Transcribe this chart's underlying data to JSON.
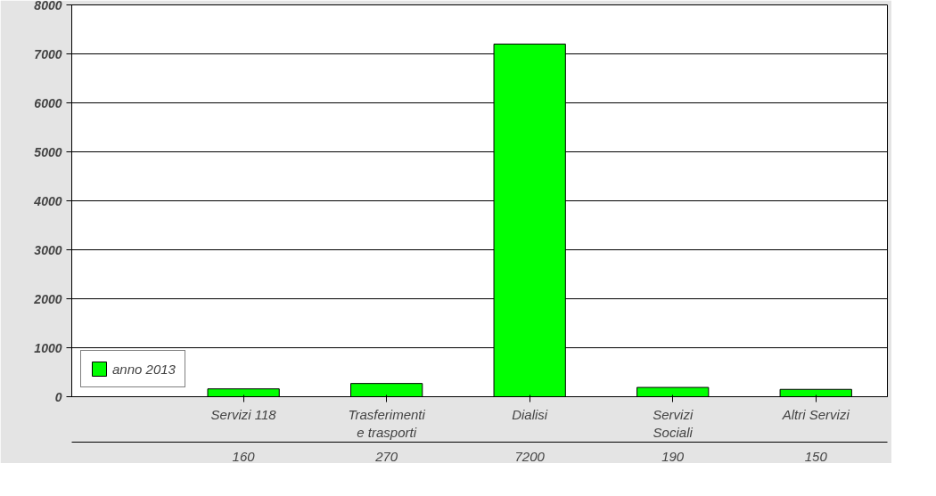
{
  "chart_data": {
    "type": "bar",
    "categories": [
      "Servizi 118",
      "Trasferimenti e trasporti",
      "Dialisi",
      "Servizi Sociali",
      "Altri Servizi"
    ],
    "series": [
      {
        "name": "anno 2013",
        "color": "#00ff00",
        "values": [
          160,
          270,
          7200,
          190,
          150
        ]
      }
    ],
    "ylim": [
      0,
      8000
    ],
    "yticks": [
      0,
      1000,
      2000,
      3000,
      4000,
      5000,
      6000,
      7000,
      8000
    ],
    "grid": "y",
    "data_labels": true,
    "legend": "bottom left"
  }
}
